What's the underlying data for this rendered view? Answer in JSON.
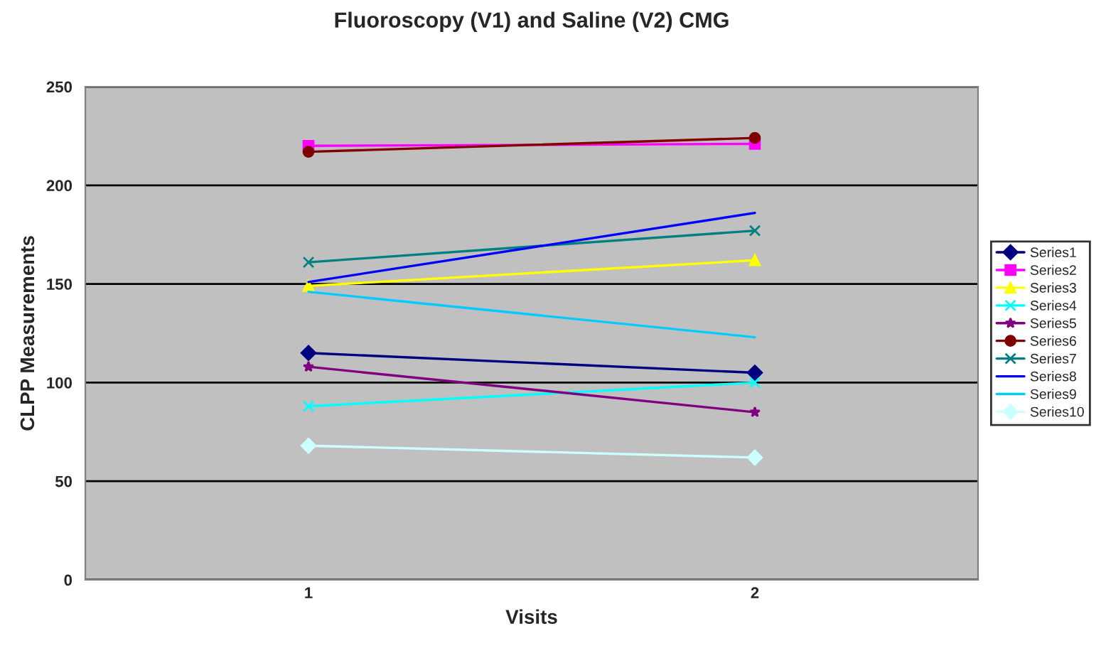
{
  "chart_data": {
    "type": "line",
    "title": "Fluoroscopy (V1) and Saline (V2) CMG",
    "xlabel": "Visits",
    "ylabel": "CLPP Measurements",
    "categories": [
      "1",
      "2"
    ],
    "ylim": [
      0,
      250
    ],
    "yticks": [
      0,
      50,
      100,
      150,
      200,
      250
    ],
    "grid": "y",
    "legend": "right",
    "series": [
      {
        "name": "Series1",
        "color": "#000080",
        "marker": "diamond",
        "values": [
          115,
          105
        ]
      },
      {
        "name": "Series2",
        "color": "#ff00ff",
        "marker": "square",
        "values": [
          220,
          221
        ]
      },
      {
        "name": "Series3",
        "color": "#ffff00",
        "marker": "triangle",
        "values": [
          149,
          162
        ]
      },
      {
        "name": "Series4",
        "color": "#00ffff",
        "marker": "cross",
        "values": [
          88,
          100
        ]
      },
      {
        "name": "Series5",
        "color": "#800080",
        "marker": "star",
        "values": [
          108,
          85
        ]
      },
      {
        "name": "Series6",
        "color": "#800000",
        "marker": "circle",
        "values": [
          217,
          224
        ]
      },
      {
        "name": "Series7",
        "color": "#008080",
        "marker": "cross",
        "values": [
          161,
          177
        ]
      },
      {
        "name": "Series8",
        "color": "#0000ff",
        "marker": "none",
        "values": [
          151,
          186
        ]
      },
      {
        "name": "Series9",
        "color": "#00ccff",
        "marker": "none",
        "values": [
          146,
          123
        ]
      },
      {
        "name": "Series10",
        "color": "#ccffff",
        "marker": "diamond",
        "values": [
          68,
          62
        ]
      }
    ]
  }
}
